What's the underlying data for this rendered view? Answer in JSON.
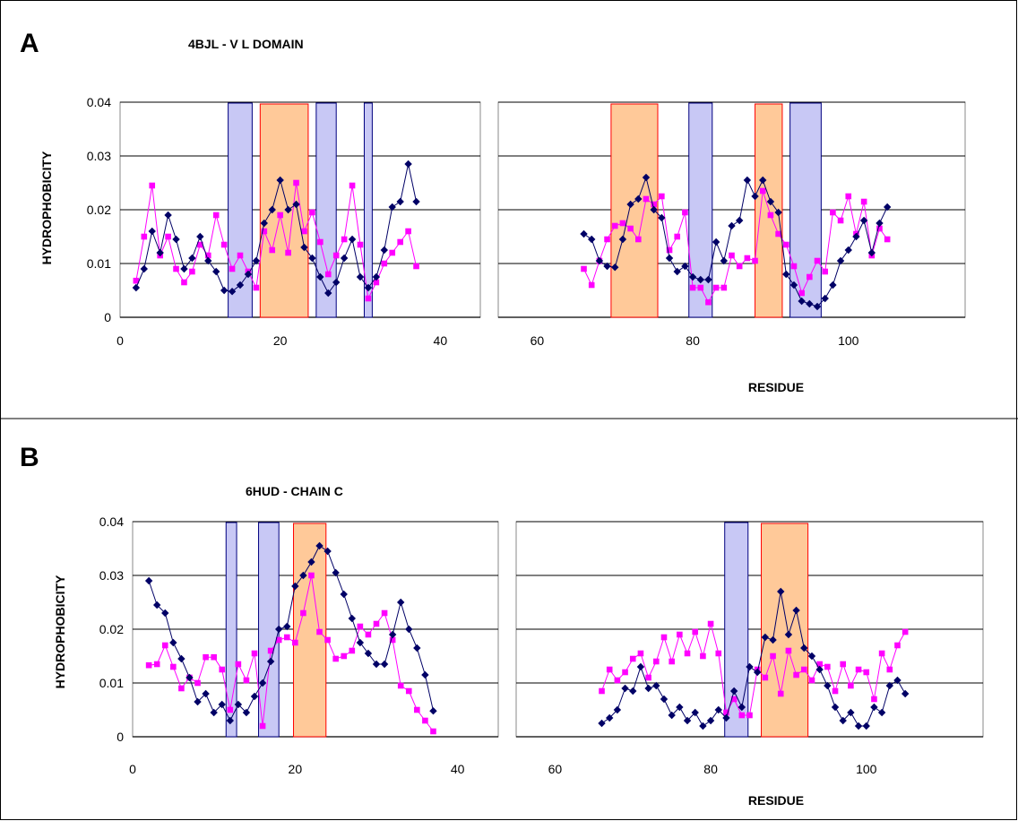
{
  "colors": {
    "series_navy": "#000066",
    "series_magenta": "#ff00ff",
    "beta_fill": "#c8c8f5",
    "beta_stroke": "#000080",
    "orange_fill": "#ffc999",
    "orange_stroke": "#ff0000",
    "grid": "#000000",
    "frame": "#000000"
  },
  "chart_data": [
    {
      "panel_letter": "A",
      "title": "4BJL - V L DOMAIN",
      "type": "line",
      "ylabel": "HYDROPHOBICITY",
      "xlabel": "RESIDUE",
      "ylim": [
        0,
        0.04
      ],
      "yticks": [
        "0",
        "0.01",
        "0.02",
        "0.03",
        "0.04"
      ],
      "grid": "horizontal",
      "subplots": [
        {
          "xlim": [
            0,
            45
          ],
          "xticks": [
            0,
            20,
            40
          ],
          "xticklabels": [
            "0",
            "20",
            "40"
          ],
          "beta_boxes": [
            [
              13.5,
              16.5
            ],
            [
              24.5,
              27
            ],
            [
              30.5,
              31.5
            ]
          ],
          "orange_boxes": [
            [
              17.5,
              23.5
            ]
          ],
          "series": [
            {
              "marker": "diamond",
              "x": [
                2,
                3,
                4,
                5,
                6,
                7,
                8,
                9,
                10,
                11,
                12,
                13,
                14,
                15,
                16,
                17,
                18,
                19,
                20,
                21,
                22,
                23,
                24,
                25,
                26,
                27,
                28,
                29,
                30,
                31,
                32,
                33,
                34,
                35,
                36,
                37
              ],
              "y": [
                0.0055,
                0.009,
                0.016,
                0.012,
                0.019,
                0.0145,
                0.009,
                0.011,
                0.015,
                0.0105,
                0.0085,
                0.005,
                0.0048,
                0.006,
                0.008,
                0.0105,
                0.0175,
                0.02,
                0.0255,
                0.02,
                0.021,
                0.013,
                0.011,
                0.0075,
                0.0045,
                0.0065,
                0.011,
                0.0145,
                0.0075,
                0.0055,
                0.0075,
                0.0125,
                0.0205,
                0.0215,
                0.0285,
                0.0215
              ]
            },
            {
              "marker": "square",
              "x": [
                2,
                3,
                4,
                5,
                6,
                7,
                8,
                9,
                10,
                11,
                12,
                13,
                14,
                15,
                16,
                17,
                18,
                19,
                20,
                21,
                22,
                23,
                24,
                25,
                26,
                27,
                28,
                29,
                30,
                31,
                32,
                33,
                34,
                35,
                36,
                37
              ],
              "y": [
                0.0068,
                0.015,
                0.0245,
                0.0115,
                0.015,
                0.009,
                0.0065,
                0.0085,
                0.0135,
                0.0115,
                0.019,
                0.0135,
                0.009,
                0.0115,
                0.0085,
                0.0055,
                0.016,
                0.0125,
                0.019,
                0.012,
                0.025,
                0.016,
                0.0195,
                0.014,
                0.008,
                0.0115,
                0.0145,
                0.0245,
                0.0135,
                0.0035,
                0.0065,
                0.01,
                0.012,
                0.014,
                0.016,
                0.0095
              ]
            }
          ]
        },
        {
          "xlim": [
            55,
            115
          ],
          "xticks": [
            60,
            80,
            100
          ],
          "xticklabels": [
            "60",
            "80",
            "100"
          ],
          "beta_boxes": [
            [
              79.5,
              82.5
            ],
            [
              92.5,
              96.5
            ]
          ],
          "orange_boxes": [
            [
              69.5,
              75.5
            ],
            [
              88,
              91.5
            ]
          ],
          "series": [
            {
              "marker": "diamond",
              "x": [
                66,
                67,
                68,
                69,
                70,
                71,
                72,
                73,
                74,
                75,
                76,
                77,
                78,
                79,
                80,
                81,
                82,
                83,
                84,
                85,
                86,
                87,
                88,
                89,
                90,
                91,
                92,
                93,
                94,
                95,
                96,
                97,
                98,
                99,
                100,
                101,
                102,
                103,
                104,
                105
              ],
              "y": [
                0.0155,
                0.0145,
                0.0105,
                0.0095,
                0.0093,
                0.0145,
                0.021,
                0.022,
                0.026,
                0.02,
                0.0185,
                0.011,
                0.0085,
                0.0095,
                0.0075,
                0.007,
                0.007,
                0.014,
                0.0105,
                0.017,
                0.018,
                0.0255,
                0.0225,
                0.0255,
                0.0215,
                0.0195,
                0.008,
                0.006,
                0.003,
                0.0025,
                0.002,
                0.0035,
                0.006,
                0.0105,
                0.0125,
                0.015,
                0.018,
                0.012,
                0.0175,
                0.0205
              ]
            },
            {
              "marker": "square",
              "x": [
                66,
                67,
                68,
                69,
                70,
                71,
                72,
                73,
                74,
                75,
                76,
                77,
                78,
                79,
                80,
                81,
                82,
                83,
                84,
                85,
                86,
                87,
                88,
                89,
                90,
                91,
                92,
                93,
                94,
                95,
                96,
                97,
                98,
                99,
                100,
                101,
                102,
                103,
                104,
                105
              ],
              "y": [
                0.009,
                0.006,
                0.0105,
                0.0145,
                0.017,
                0.0175,
                0.0165,
                0.0145,
                0.022,
                0.021,
                0.0225,
                0.0125,
                0.015,
                0.0195,
                0.0055,
                0.0055,
                0.0028,
                0.0055,
                0.0055,
                0.0115,
                0.0095,
                0.011,
                0.0105,
                0.0235,
                0.019,
                0.0155,
                0.0135,
                0.0095,
                0.0045,
                0.0075,
                0.0105,
                0.0085,
                0.0195,
                0.018,
                0.0225,
                0.0155,
                0.0215,
                0.0115,
                0.0165,
                0.0145
              ]
            }
          ]
        }
      ]
    },
    {
      "panel_letter": "B",
      "title": "6HUD - CHAIN C",
      "type": "line",
      "ylabel": "HYDROPHOBICITY",
      "xlabel": "RESIDUE",
      "ylim": [
        0,
        0.04
      ],
      "yticks": [
        "0",
        "0.01",
        "0.02",
        "0.03",
        "0.04"
      ],
      "grid": "horizontal",
      "subplots": [
        {
          "xlim": [
            0,
            45
          ],
          "xticks": [
            0,
            20,
            40
          ],
          "xticklabels": [
            "0",
            "20",
            "40"
          ],
          "beta_boxes": [
            [
              11.5,
              12.8
            ],
            [
              15.5,
              18
            ]
          ],
          "orange_boxes": [
            [
              19.8,
              23.8
            ]
          ],
          "series": [
            {
              "marker": "diamond",
              "x": [
                2,
                3,
                4,
                5,
                6,
                7,
                8,
                9,
                10,
                11,
                12,
                13,
                14,
                15,
                16,
                17,
                18,
                19,
                20,
                21,
                22,
                23,
                24,
                25,
                26,
                27,
                28,
                29,
                30,
                31,
                32,
                33,
                34,
                35,
                36,
                37
              ],
              "y": [
                0.029,
                0.0245,
                0.023,
                0.0175,
                0.0145,
                0.011,
                0.0065,
                0.008,
                0.0045,
                0.006,
                0.003,
                0.006,
                0.0045,
                0.0075,
                0.01,
                0.014,
                0.02,
                0.0205,
                0.028,
                0.03,
                0.0325,
                0.0355,
                0.0345,
                0.0305,
                0.0265,
                0.022,
                0.0175,
                0.0155,
                0.0135,
                0.0135,
                0.019,
                0.025,
                0.02,
                0.0165,
                0.0115,
                0.0048
              ]
            },
            {
              "marker": "square",
              "x": [
                2,
                3,
                4,
                5,
                6,
                7,
                8,
                9,
                10,
                11,
                12,
                13,
                14,
                15,
                16,
                17,
                18,
                19,
                20,
                21,
                22,
                23,
                24,
                25,
                26,
                27,
                28,
                29,
                30,
                31,
                32,
                33,
                34,
                35,
                36,
                37
              ],
              "y": [
                0.0133,
                0.0135,
                0.017,
                0.013,
                0.009,
                0.011,
                0.01,
                0.0148,
                0.0148,
                0.0125,
                0.005,
                0.0135,
                0.0105,
                0.0155,
                0.002,
                0.016,
                0.018,
                0.0185,
                0.0175,
                0.023,
                0.03,
                0.0195,
                0.018,
                0.0145,
                0.015,
                0.016,
                0.0205,
                0.019,
                0.021,
                0.023,
                0.018,
                0.0095,
                0.0085,
                0.005,
                0.003,
                0.001
              ]
            }
          ]
        },
        {
          "xlim": [
            55,
            115
          ],
          "xticks": [
            60,
            80,
            100
          ],
          "xticklabels": [
            "60",
            "80",
            "100"
          ],
          "beta_boxes": [
            [
              81.8,
              84.8
            ]
          ],
          "orange_boxes": [
            [
              86.5,
              92.5
            ]
          ],
          "series": [
            {
              "marker": "diamond",
              "x": [
                66,
                67,
                68,
                69,
                70,
                71,
                72,
                73,
                74,
                75,
                76,
                77,
                78,
                79,
                80,
                81,
                82,
                83,
                84,
                85,
                86,
                87,
                88,
                89,
                90,
                91,
                92,
                93,
                94,
                95,
                96,
                97,
                98,
                99,
                100,
                101,
                102,
                103,
                104,
                105
              ],
              "y": [
                0.0025,
                0.0035,
                0.005,
                0.009,
                0.0085,
                0.013,
                0.009,
                0.0095,
                0.007,
                0.004,
                0.0055,
                0.003,
                0.0045,
                0.002,
                0.003,
                0.005,
                0.0035,
                0.0085,
                0.0055,
                0.013,
                0.012,
                0.0185,
                0.018,
                0.027,
                0.019,
                0.0235,
                0.0165,
                0.015,
                0.0125,
                0.0095,
                0.0055,
                0.003,
                0.0045,
                0.002,
                0.002,
                0.0055,
                0.0045,
                0.0095,
                0.0105,
                0.008
              ]
            },
            {
              "marker": "square",
              "x": [
                66,
                67,
                68,
                69,
                70,
                71,
                72,
                73,
                74,
                75,
                76,
                77,
                78,
                79,
                80,
                81,
                82,
                83,
                84,
                85,
                86,
                87,
                88,
                89,
                90,
                91,
                92,
                93,
                94,
                95,
                96,
                97,
                98,
                99,
                100,
                101,
                102,
                103,
                104,
                105
              ],
              "y": [
                0.0085,
                0.0125,
                0.0105,
                0.012,
                0.0145,
                0.0155,
                0.011,
                0.014,
                0.0185,
                0.014,
                0.019,
                0.0155,
                0.0195,
                0.015,
                0.021,
                0.0155,
                0.0045,
                0.007,
                0.004,
                0.004,
                0.0125,
                0.011,
                0.015,
                0.008,
                0.016,
                0.0115,
                0.0125,
                0.0105,
                0.0135,
                0.013,
                0.0085,
                0.0135,
                0.0095,
                0.0125,
                0.012,
                0.007,
                0.0155,
                0.0125,
                0.017,
                0.0195
              ]
            }
          ]
        }
      ]
    }
  ]
}
